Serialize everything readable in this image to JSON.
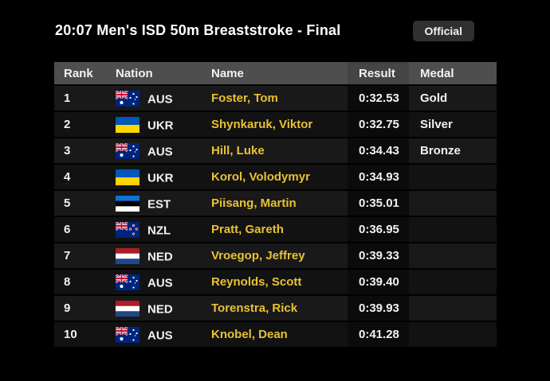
{
  "page": {
    "title": "20:07 Men's ISD 50m Breaststroke - Final",
    "status_badge": "Official"
  },
  "table": {
    "columns": {
      "rank": "Rank",
      "nation": "Nation",
      "name": "Name",
      "result": "Result",
      "medal": "Medal"
    },
    "rows": [
      {
        "rank": "1",
        "nation": "AUS",
        "flag": "aus-flag-icon",
        "name": "Foster, Tom",
        "result": "0:32.53",
        "medal": "Gold"
      },
      {
        "rank": "2",
        "nation": "UKR",
        "flag": "ukr-flag-icon",
        "name": "Shynkaruk, Viktor",
        "result": "0:32.75",
        "medal": "Silver"
      },
      {
        "rank": "3",
        "nation": "AUS",
        "flag": "aus-flag-icon",
        "name": "Hill, Luke",
        "result": "0:34.43",
        "medal": "Bronze"
      },
      {
        "rank": "4",
        "nation": "UKR",
        "flag": "ukr-flag-icon",
        "name": "Korol, Volodymyr",
        "result": "0:34.93",
        "medal": ""
      },
      {
        "rank": "5",
        "nation": "EST",
        "flag": "est-flag-icon",
        "name": "Piisang, Martin",
        "result": "0:35.01",
        "medal": ""
      },
      {
        "rank": "6",
        "nation": "NZL",
        "flag": "nzl-flag-icon",
        "name": "Pratt, Gareth",
        "result": "0:36.95",
        "medal": ""
      },
      {
        "rank": "7",
        "nation": "NED",
        "flag": "ned-flag-icon",
        "name": "Vroegop, Jeffrey",
        "result": "0:39.33",
        "medal": ""
      },
      {
        "rank": "8",
        "nation": "AUS",
        "flag": "aus-flag-icon",
        "name": "Reynolds, Scott",
        "result": "0:39.40",
        "medal": ""
      },
      {
        "rank": "9",
        "nation": "NED",
        "flag": "ned-flag-icon",
        "name": "Torenstra, Rick",
        "result": "0:39.93",
        "medal": ""
      },
      {
        "rank": "10",
        "nation": "AUS",
        "flag": "aus-flag-icon",
        "name": "Knobel, Dean",
        "result": "0:41.28",
        "medal": ""
      }
    ]
  },
  "colors": {
    "background": "#000000",
    "header_row_bg": "#4e4e4e",
    "row_bg_odd": "#191919",
    "row_bg_even": "#121212",
    "result_col_bg": "#0b0b0b",
    "name_text": "#e8c233",
    "primary_text": "#f2f2f2",
    "badge_bg": "#303030"
  }
}
